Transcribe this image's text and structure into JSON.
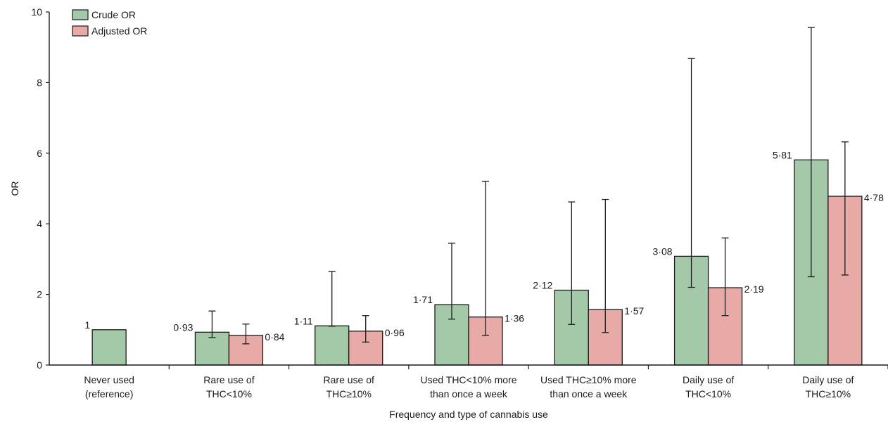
{
  "chart_data": {
    "type": "bar",
    "xlabel": "Frequency and type of cannabis use",
    "ylabel": "OR",
    "ylim": [
      0,
      10
    ],
    "yticks": [
      0,
      2,
      4,
      6,
      8,
      10
    ],
    "grid": false,
    "legend_position": "top-left",
    "categories": [
      [
        "Never used",
        "(reference)"
      ],
      [
        "Rare use of",
        "THC<10%"
      ],
      [
        "Rare use of",
        "THC≥10%"
      ],
      [
        "Used THC<10% more",
        "than once a week"
      ],
      [
        "Used THC≥10% more",
        "than once a week"
      ],
      [
        "Daily use of",
        "THC<10%"
      ],
      [
        "Daily use of",
        "THC≥10%"
      ]
    ],
    "series": [
      {
        "name": "Crude OR",
        "color": "#a3c9a8",
        "values": [
          1,
          0.93,
          1.11,
          1.71,
          2.12,
          3.08,
          5.81
        ],
        "labels": [
          "1",
          "0·93",
          "1·11",
          "1·71",
          "2·12",
          "3·08",
          "5·81"
        ],
        "ci_low": [
          null,
          0.78,
          1.1,
          1.3,
          1.15,
          2.2,
          2.5
        ],
        "ci_high": [
          null,
          1.53,
          2.65,
          3.45,
          4.62,
          8.68,
          9.56
        ]
      },
      {
        "name": "Adjusted OR",
        "color": "#e8aaa7",
        "values": [
          null,
          0.84,
          0.96,
          1.36,
          1.57,
          2.19,
          4.78
        ],
        "labels": [
          "",
          "0·84",
          "0·96",
          "1·36",
          "1·57",
          "2·19",
          "4·78"
        ],
        "ci_low": [
          null,
          0.6,
          0.65,
          0.84,
          0.92,
          1.4,
          2.55
        ],
        "ci_high": [
          null,
          1.16,
          1.4,
          5.2,
          4.69,
          3.6,
          6.32
        ]
      }
    ]
  }
}
